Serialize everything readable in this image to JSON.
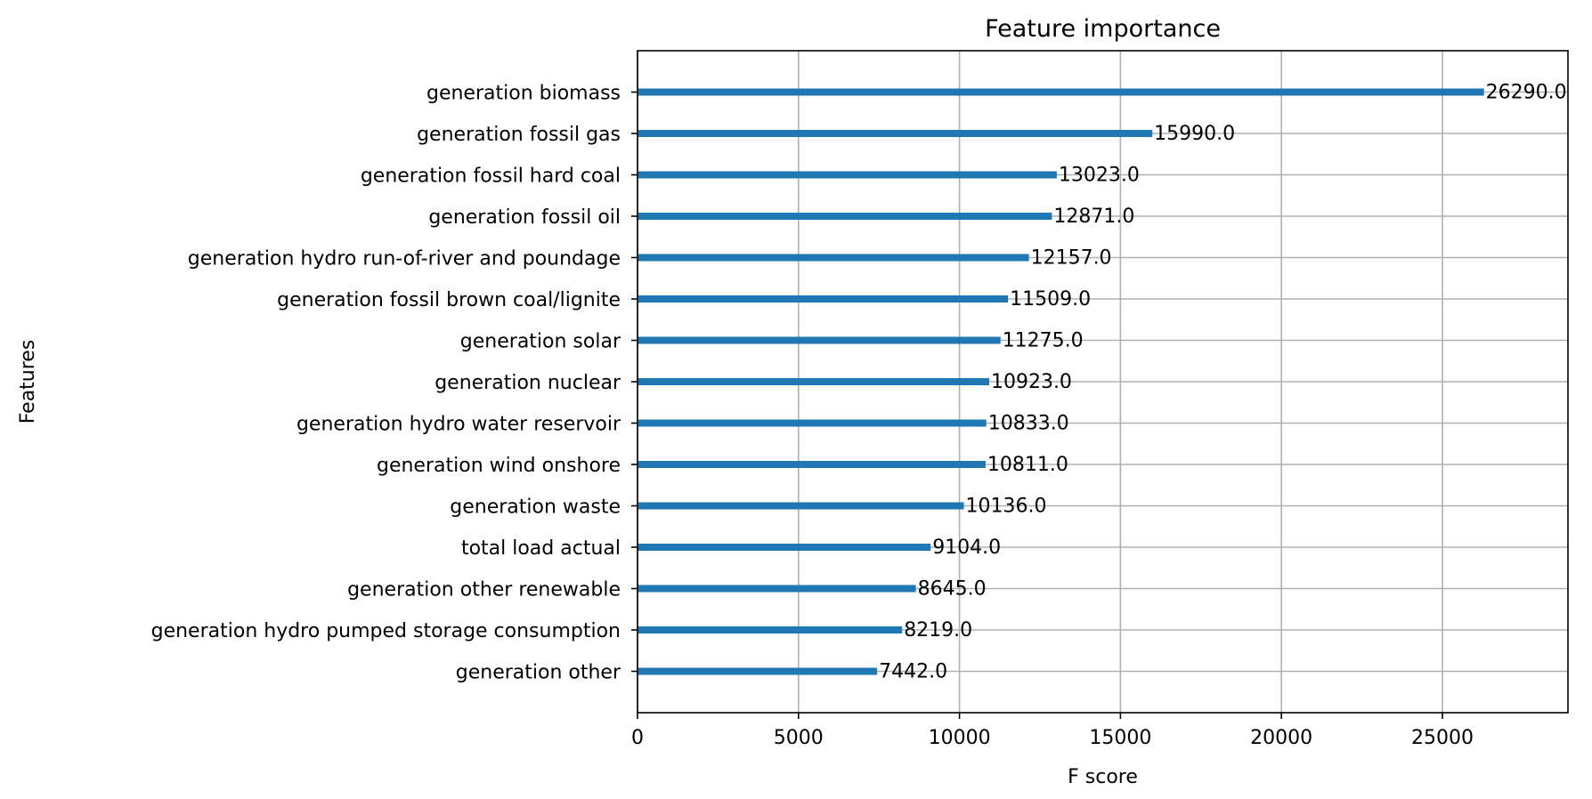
{
  "chart_data": {
    "type": "bar",
    "orientation": "horizontal",
    "title": "Feature importance",
    "xlabel": "F score",
    "ylabel": "Features",
    "xlim": [
      0,
      28900
    ],
    "xticks": [
      0,
      5000,
      10000,
      15000,
      20000,
      25000
    ],
    "grid": true,
    "bar_color": "#1f77b4",
    "categories": [
      "generation biomass",
      "generation fossil gas",
      "generation fossil hard coal",
      "generation fossil oil",
      "generation hydro run-of-river and poundage",
      "generation fossil brown coal/lignite",
      "generation solar",
      "generation nuclear",
      "generation hydro water reservoir",
      "generation wind onshore",
      "generation waste",
      "total load actual",
      "generation other renewable",
      "generation hydro pumped storage consumption",
      "generation other"
    ],
    "values": [
      26290.0,
      15990.0,
      13023.0,
      12871.0,
      12157.0,
      11509.0,
      11275.0,
      10923.0,
      10833.0,
      10811.0,
      10136.0,
      9104.0,
      8645.0,
      8219.0,
      7442.0
    ],
    "value_labels": [
      "26290.0",
      "15990.0",
      "13023.0",
      "12871.0",
      "12157.0",
      "11509.0",
      "11275.0",
      "10923.0",
      "10833.0",
      "10811.0",
      "10136.0",
      "9104.0",
      "8645.0",
      "8219.0",
      "7442.0"
    ]
  }
}
